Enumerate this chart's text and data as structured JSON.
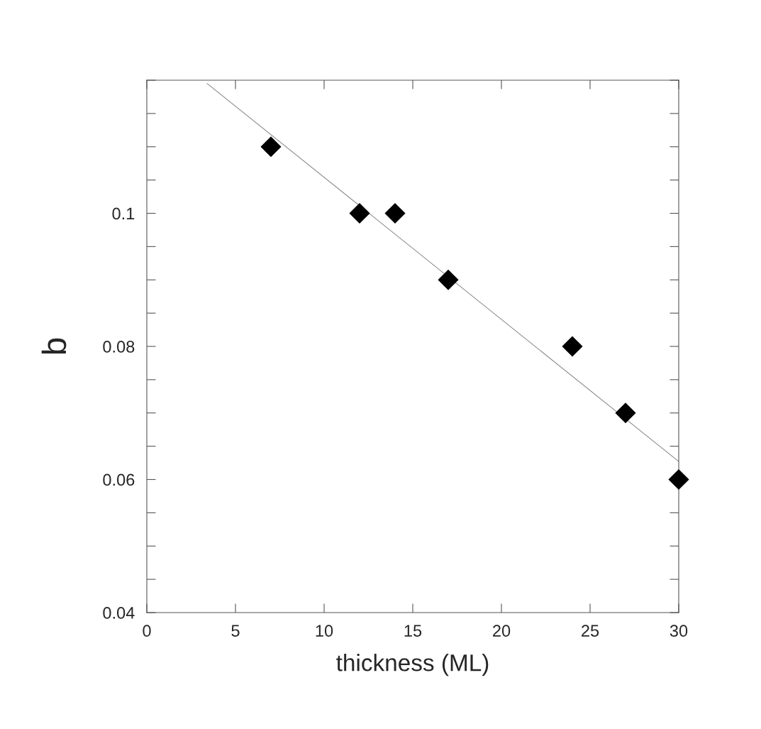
{
  "chart_data": {
    "type": "scatter",
    "xlabel": "thickness (ML)",
    "ylabel": "b",
    "xlim": [
      0,
      30
    ],
    "xticks": [
      0,
      5,
      10,
      15,
      20,
      25,
      30
    ],
    "ylim": [
      0.04,
      0.12
    ],
    "yticks": [
      0.04,
      {
        "value": 0.045,
        "label": null
      },
      {
        "value": 0.05,
        "label": null
      },
      {
        "value": 0.055,
        "label": null
      },
      0.06,
      {
        "value": 0.065,
        "label": null
      },
      {
        "value": 0.07,
        "label": null
      },
      {
        "value": 0.075,
        "label": null
      },
      0.08,
      {
        "value": 0.085,
        "label": null
      },
      {
        "value": 0.09,
        "label": null
      },
      {
        "value": 0.095,
        "label": null
      },
      0.1,
      {
        "value": 0.105,
        "label": null
      },
      {
        "value": 0.11,
        "label": null
      },
      {
        "value": 0.115,
        "label": null
      },
      {
        "value": 0.12,
        "label": null
      }
    ],
    "grid": false,
    "legend": false,
    "series": [
      {
        "color": "#000000",
        "marker": "diamond",
        "x": [
          7,
          12,
          14,
          17,
          24,
          27,
          30
        ],
        "values": [
          0.11,
          0.1,
          0.1,
          0.09,
          0.08,
          0.07,
          0.06
        ]
      },
      {
        "type": "line",
        "color": "#888888",
        "marker": "none",
        "line_style": "solid",
        "x": [
          3.4,
          30
        ],
        "values": [
          0.1195,
          0.0627
        ]
      }
    ]
  }
}
